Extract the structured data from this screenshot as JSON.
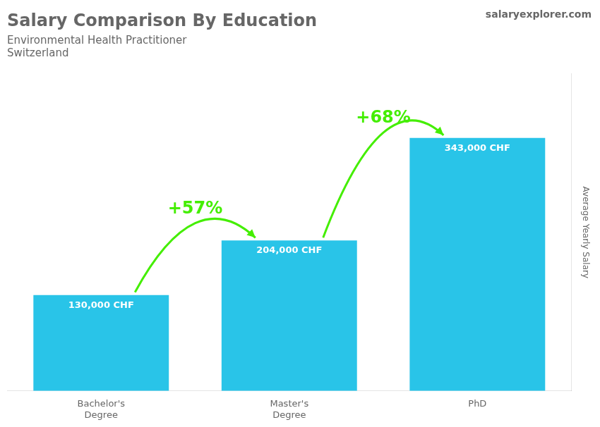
{
  "chart_data": {
    "type": "bar",
    "title": "Salary Comparison By Education",
    "subtitle": [
      "Environmental Health Practitioner",
      "Switzerland"
    ],
    "categories": [
      "Bachelor's\nDegree",
      "Master's\nDegree",
      "PhD"
    ],
    "values": [
      130000,
      204000,
      343000
    ],
    "value_labels": [
      "130,000 CHF",
      "204,000 CHF",
      "343,000 CHF"
    ],
    "data_labels": true,
    "color": "#29c4e8",
    "ylabel": "Average Yearly Salary",
    "ylim": [
      0,
      430000
    ],
    "tick_labels": "x",
    "grid": false,
    "annotations": [
      {
        "text": "+57%",
        "color": "#44ee00",
        "between": [
          "Bachelor's\nDegree",
          "Master's\nDegree"
        ]
      },
      {
        "text": "+68%",
        "color": "#44ee00",
        "between": [
          "Master's\nDegree",
          "PhD"
        ]
      },
      {
        "text": "salaryexplorer.com"
      }
    ]
  }
}
